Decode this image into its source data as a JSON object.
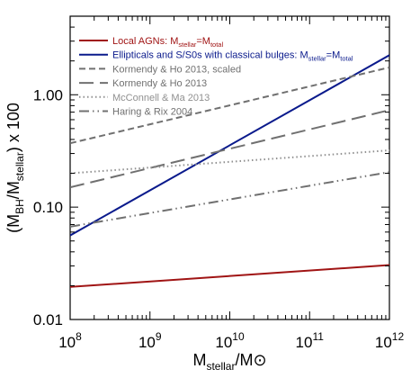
{
  "chart_data": {
    "type": "line",
    "title": "",
    "xlabel": {
      "base": "M",
      "sub": "stellar",
      "suffix": "/M",
      "odot": "⊙"
    },
    "ylabel": {
      "prefix": "(M",
      "sub1": "BH",
      "mid": "/M",
      "sub2": "stellar",
      "suffix": ") x 100"
    },
    "x_scale": "log",
    "y_scale": "log",
    "xlim": [
      100000000.0,
      1000000000000.0
    ],
    "ylim": [
      0.01,
      5.0
    ],
    "x_ticks": [
      {
        "value": 100000000.0,
        "base": "10",
        "exp": "8"
      },
      {
        "value": 1000000000.0,
        "base": "10",
        "exp": "9"
      },
      {
        "value": 10000000000.0,
        "base": "10",
        "exp": "10"
      },
      {
        "value": 100000000000.0,
        "base": "10",
        "exp": "11"
      },
      {
        "value": 1000000000000.0,
        "base": "10",
        "exp": "12"
      }
    ],
    "y_ticks": [
      {
        "value": 0.01,
        "label": "0.01"
      },
      {
        "value": 0.1,
        "label": "0.10"
      },
      {
        "value": 1.0,
        "label": "1.00"
      }
    ],
    "grid": false,
    "legend_position": "top-left",
    "series": [
      {
        "name": "Local AGNs: M_stellar=M_total",
        "legend": {
          "pre": "Local AGNs: M",
          "sub1": "stellar",
          "mid": "=M",
          "sub2": "total"
        },
        "color": "#a01414",
        "dash": "solid",
        "x": [
          100000000.0,
          1000000000000.0
        ],
        "y": [
          0.0195,
          0.0305
        ]
      },
      {
        "name": "Ellipticals and S/S0s with classical bulges: M_stellar=M_total",
        "legend": {
          "pre": "Ellipticals and S/S0s with classical bulges: M",
          "sub1": "stellar",
          "mid": "=M",
          "sub2": "total"
        },
        "color": "#0a1a8c",
        "dash": "solid",
        "x": [
          100000000.0,
          1000000000000.0
        ],
        "y": [
          0.056,
          2.25
        ]
      },
      {
        "name": "Kormendy & Ho 2013, scaled",
        "legend": {
          "pre": "Kormendy & Ho 2013, scaled"
        },
        "color": "#707070",
        "dash": "short-dash",
        "x": [
          100000000.0,
          1000000000000.0
        ],
        "y": [
          0.37,
          1.75
        ]
      },
      {
        "name": "Kormendy & Ho 2013",
        "legend": {
          "pre": "Kormendy & Ho 2013"
        },
        "color": "#707070",
        "dash": "long-dash",
        "x": [
          100000000.0,
          1000000000000.0
        ],
        "y": [
          0.15,
          0.73
        ]
      },
      {
        "name": "McConnell & Ma 2013",
        "legend": {
          "pre": "McConnell & Ma 2013"
        },
        "color": "#909090",
        "dash": "dotted",
        "x": [
          100000000.0,
          1000000000000.0
        ],
        "y": [
          0.2,
          0.32
        ]
      },
      {
        "name": "Haring & Rix 2004",
        "legend": {
          "pre": "Haring & Rix 2004"
        },
        "color": "#707070",
        "dash": "dash-dot-dot",
        "x": [
          100000000.0,
          1000000000000.0
        ],
        "y": [
          0.067,
          0.205
        ]
      }
    ]
  }
}
